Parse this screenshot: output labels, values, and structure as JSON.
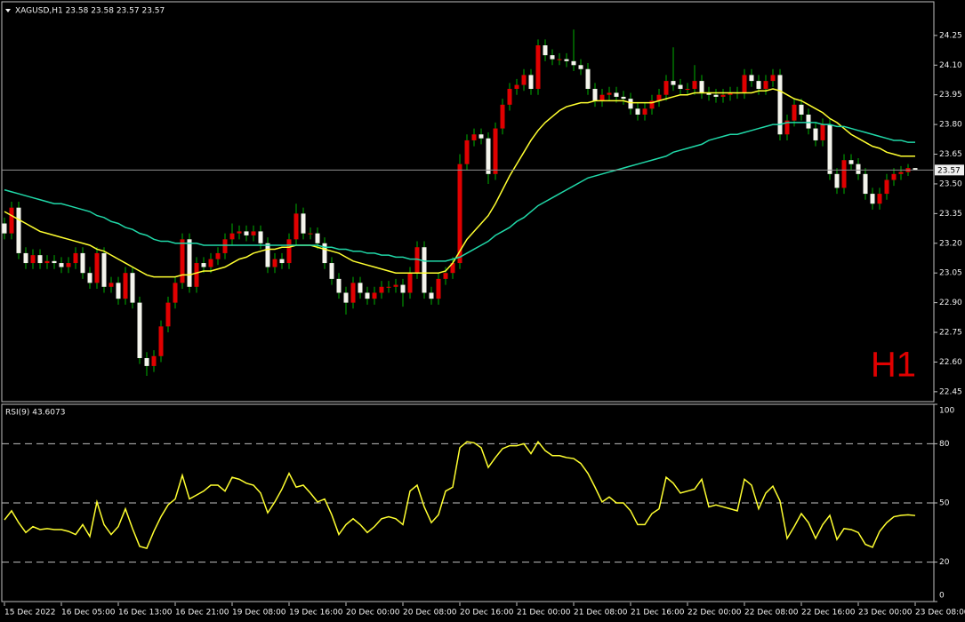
{
  "chart_data": [
    {
      "type": "candlestick",
      "title": "XAGUSD,H1 23.58 23.58 23.57 23.57",
      "period_label": "H1",
      "categories": [
        "15 Dec 2022",
        null,
        null,
        null,
        null,
        null,
        null,
        null,
        "16 Dec 05:00",
        null,
        null,
        null,
        null,
        null,
        null,
        null,
        "16 Dec 13:00",
        null,
        null,
        null,
        null,
        null,
        null,
        null,
        "16 Dec 21:00",
        null,
        null,
        null,
        null,
        null,
        null,
        null,
        "19 Dec 08:00",
        null,
        null,
        null,
        null,
        null,
        null,
        null,
        "19 Dec 16:00",
        null,
        null,
        null,
        null,
        null,
        null,
        null,
        "20 Dec 00:00",
        null,
        null,
        null,
        null,
        null,
        null,
        null,
        "20 Dec 08:00",
        null,
        null,
        null,
        null,
        null,
        null,
        null,
        "20 Dec 16:00",
        null,
        null,
        null,
        null,
        null,
        null,
        null,
        "21 Dec 00:00",
        null,
        null,
        null,
        null,
        null,
        null,
        null,
        "21 Dec 08:00",
        null,
        null,
        null,
        null,
        null,
        null,
        null,
        "21 Dec 16:00",
        null,
        null,
        null,
        null,
        null,
        null,
        null,
        "22 Dec 00:00",
        null,
        null,
        null,
        null,
        null,
        null,
        null,
        "22 Dec 08:00",
        null,
        null,
        null,
        null,
        null,
        null,
        null,
        "22 Dec 16:00",
        null,
        null,
        null,
        null,
        null,
        null,
        null,
        "23 Dec 00:00",
        null,
        null,
        null,
        null,
        null,
        null,
        null,
        "23 Dec 08:00"
      ],
      "open": [
        23.3,
        23.25,
        23.38,
        23.15,
        23.1,
        23.14,
        23.1,
        23.11,
        23.1,
        23.08,
        23.1,
        23.15,
        23.05,
        23.0,
        23.15,
        22.98,
        23.0,
        22.92,
        23.05,
        22.9,
        22.62,
        22.58,
        22.63,
        22.78,
        22.9,
        23.0,
        23.22,
        22.98,
        23.1,
        23.08,
        23.12,
        23.15,
        23.22,
        23.25,
        23.26,
        23.24,
        23.26,
        23.2,
        23.08,
        23.12,
        23.1,
        23.22,
        23.35,
        23.25,
        23.25,
        23.2,
        23.1,
        23.02,
        22.95,
        22.9,
        23.0,
        22.95,
        22.92,
        22.95,
        22.98,
        22.98,
        22.99,
        22.95,
        23.05,
        23.18,
        22.95,
        22.92,
        23.02,
        23.05,
        23.1,
        23.6,
        23.72,
        23.75,
        23.73,
        23.55,
        23.78,
        23.9,
        23.98,
        24.0,
        24.05,
        23.98,
        24.2,
        24.15,
        24.13,
        24.13,
        24.12,
        24.1,
        24.08,
        23.98,
        23.92,
        23.95,
        23.96,
        23.94,
        23.93,
        23.88,
        23.85,
        23.88,
        23.92,
        23.95,
        24.02,
        24.0,
        23.98,
        23.98,
        24.02,
        23.96,
        23.95,
        23.94,
        23.95,
        23.96,
        23.96,
        24.05,
        24.02,
        23.98,
        24.02,
        24.05,
        23.75,
        23.82,
        23.9,
        23.85,
        23.78,
        23.72,
        23.8,
        23.55,
        23.48,
        23.62,
        23.6,
        23.55,
        23.45,
        23.4,
        23.45,
        23.52,
        23.55,
        23.56,
        23.58
      ],
      "high": [
        23.33,
        23.41,
        23.41,
        23.18,
        23.17,
        23.17,
        23.14,
        23.14,
        23.13,
        23.13,
        23.18,
        23.18,
        23.08,
        23.18,
        23.18,
        23.03,
        23.03,
        23.08,
        23.08,
        22.93,
        22.65,
        22.66,
        22.81,
        22.93,
        23.03,
        23.25,
        23.25,
        23.13,
        23.13,
        23.15,
        23.18,
        23.25,
        23.3,
        23.29,
        23.29,
        23.29,
        23.29,
        23.23,
        23.15,
        23.15,
        23.25,
        23.4,
        23.38,
        23.28,
        23.28,
        23.23,
        23.13,
        23.05,
        22.98,
        23.03,
        23.03,
        22.98,
        22.98,
        23.01,
        23.01,
        23.02,
        23.02,
        23.08,
        23.21,
        23.21,
        22.98,
        23.05,
        23.08,
        23.13,
        23.65,
        23.75,
        23.78,
        23.78,
        23.76,
        23.81,
        23.93,
        24.01,
        24.03,
        24.08,
        24.08,
        24.23,
        24.23,
        24.18,
        24.16,
        24.16,
        24.28,
        24.13,
        24.11,
        24.01,
        23.98,
        23.99,
        23.99,
        23.97,
        23.96,
        23.91,
        23.91,
        23.95,
        23.98,
        24.05,
        24.19,
        24.03,
        24.01,
        24.1,
        24.05,
        23.99,
        23.98,
        23.98,
        23.99,
        23.99,
        24.08,
        24.08,
        24.05,
        24.05,
        24.08,
        24.08,
        23.85,
        23.93,
        23.93,
        23.88,
        23.81,
        23.83,
        23.83,
        23.58,
        23.65,
        23.65,
        23.63,
        23.58,
        23.48,
        23.48,
        23.55,
        23.58,
        23.59,
        23.6,
        23.58
      ],
      "low": [
        23.22,
        23.22,
        23.12,
        23.07,
        23.07,
        23.07,
        23.07,
        23.07,
        23.05,
        23.05,
        23.07,
        23.02,
        22.97,
        22.97,
        22.95,
        22.95,
        22.89,
        22.89,
        22.87,
        22.59,
        22.53,
        22.55,
        22.6,
        22.75,
        22.87,
        22.97,
        22.95,
        22.95,
        23.05,
        23.05,
        23.09,
        23.12,
        23.19,
        23.22,
        23.21,
        23.21,
        23.17,
        23.05,
        23.05,
        23.07,
        23.07,
        23.19,
        23.22,
        23.22,
        23.17,
        23.07,
        22.99,
        22.92,
        22.84,
        22.87,
        22.92,
        22.89,
        22.89,
        22.92,
        22.95,
        22.95,
        22.88,
        22.92,
        23.02,
        22.92,
        22.89,
        22.89,
        22.99,
        23.02,
        23.07,
        23.57,
        23.69,
        23.7,
        23.5,
        23.52,
        23.75,
        23.87,
        23.95,
        23.97,
        23.95,
        23.95,
        24.12,
        24.1,
        24.1,
        24.09,
        24.07,
        24.05,
        23.95,
        23.89,
        23.89,
        23.92,
        23.91,
        23.9,
        23.85,
        23.82,
        23.82,
        23.85,
        23.89,
        23.92,
        23.97,
        23.95,
        23.95,
        23.95,
        23.93,
        23.92,
        23.91,
        23.91,
        23.92,
        23.93,
        23.93,
        23.99,
        23.95,
        23.95,
        23.99,
        23.72,
        23.72,
        23.79,
        23.82,
        23.75,
        23.69,
        23.69,
        23.52,
        23.45,
        23.45,
        23.57,
        23.52,
        23.42,
        23.37,
        23.37,
        23.42,
        23.49,
        23.52,
        23.54,
        23.57
      ],
      "close": [
        23.25,
        23.38,
        23.15,
        23.1,
        23.14,
        23.1,
        23.11,
        23.1,
        23.08,
        23.1,
        23.15,
        23.05,
        23.0,
        23.15,
        22.98,
        23.0,
        22.92,
        23.05,
        22.9,
        22.62,
        22.58,
        22.63,
        22.78,
        22.9,
        23.0,
        23.22,
        22.98,
        23.1,
        23.08,
        23.12,
        23.15,
        23.22,
        23.25,
        23.26,
        23.24,
        23.26,
        23.2,
        23.08,
        23.12,
        23.1,
        23.22,
        23.35,
        23.25,
        23.25,
        23.2,
        23.1,
        23.02,
        22.95,
        22.9,
        23.0,
        22.95,
        22.92,
        22.95,
        22.98,
        22.98,
        22.99,
        22.95,
        23.05,
        23.18,
        22.95,
        22.92,
        23.02,
        23.05,
        23.1,
        23.6,
        23.72,
        23.75,
        23.73,
        23.55,
        23.78,
        23.9,
        23.98,
        24.0,
        24.05,
        23.98,
        24.2,
        24.15,
        24.13,
        24.13,
        24.12,
        24.1,
        24.08,
        23.98,
        23.92,
        23.95,
        23.96,
        23.94,
        23.93,
        23.88,
        23.85,
        23.88,
        23.92,
        23.95,
        24.02,
        24.0,
        23.98,
        23.98,
        24.02,
        23.96,
        23.95,
        23.94,
        23.95,
        23.96,
        23.96,
        24.05,
        24.02,
        23.98,
        24.02,
        24.05,
        23.75,
        23.82,
        23.9,
        23.85,
        23.78,
        23.72,
        23.8,
        23.55,
        23.48,
        23.62,
        23.6,
        23.55,
        23.45,
        23.4,
        23.45,
        23.52,
        23.55,
        23.56,
        23.58,
        23.57
      ],
      "bull_color": "#e00000",
      "bear_color": "#f4f4ec",
      "wick_color": "#00b000",
      "lines": [
        {
          "color": "#ffff30",
          "values": [
            23.36,
            23.34,
            23.32,
            23.3,
            23.28,
            23.26,
            23.25,
            23.24,
            23.23,
            23.22,
            23.21,
            23.2,
            23.19,
            23.17,
            23.16,
            23.14,
            23.12,
            23.1,
            23.08,
            23.06,
            23.04,
            23.03,
            23.03,
            23.03,
            23.03,
            23.04,
            23.04,
            23.05,
            23.06,
            23.06,
            23.07,
            23.08,
            23.1,
            23.12,
            23.13,
            23.15,
            23.16,
            23.17,
            23.17,
            23.18,
            23.18,
            23.19,
            23.19,
            23.19,
            23.18,
            23.17,
            23.16,
            23.15,
            23.13,
            23.11,
            23.1,
            23.09,
            23.08,
            23.07,
            23.06,
            23.05,
            23.05,
            23.05,
            23.05,
            23.05,
            23.05,
            23.05,
            23.06,
            23.1,
            23.16,
            23.22,
            23.26,
            23.3,
            23.34,
            23.4,
            23.47,
            23.54,
            23.6,
            23.66,
            23.72,
            23.77,
            23.81,
            23.84,
            23.87,
            23.89,
            23.9,
            23.91,
            23.91,
            23.92,
            23.92,
            23.92,
            23.92,
            23.92,
            23.91,
            23.91,
            23.91,
            23.91,
            23.92,
            23.93,
            23.94,
            23.95,
            23.95,
            23.96,
            23.96,
            23.96,
            23.96,
            23.96,
            23.96,
            23.96,
            23.96,
            23.96,
            23.97,
            23.97,
            23.98,
            23.97,
            23.95,
            23.93,
            23.92,
            23.9,
            23.88,
            23.86,
            23.83,
            23.81,
            23.78,
            23.75,
            23.73,
            23.71,
            23.69,
            23.68,
            23.66,
            23.65,
            23.64,
            23.64,
            23.64
          ]
        },
        {
          "color": "#20d8a8",
          "values": [
            23.47,
            23.46,
            23.45,
            23.44,
            23.43,
            23.42,
            23.41,
            23.4,
            23.4,
            23.39,
            23.38,
            23.37,
            23.36,
            23.34,
            23.33,
            23.31,
            23.3,
            23.28,
            23.27,
            23.25,
            23.24,
            23.22,
            23.21,
            23.21,
            23.2,
            23.2,
            23.2,
            23.2,
            23.19,
            23.19,
            23.19,
            23.19,
            23.19,
            23.19,
            23.19,
            23.19,
            23.19,
            23.19,
            23.19,
            23.19,
            23.19,
            23.19,
            23.19,
            23.19,
            23.19,
            23.18,
            23.18,
            23.17,
            23.17,
            23.16,
            23.16,
            23.15,
            23.15,
            23.14,
            23.14,
            23.13,
            23.13,
            23.12,
            23.12,
            23.11,
            23.11,
            23.11,
            23.11,
            23.12,
            23.13,
            23.15,
            23.17,
            23.19,
            23.21,
            23.24,
            23.26,
            23.28,
            23.31,
            23.33,
            23.36,
            23.39,
            23.41,
            23.43,
            23.45,
            23.47,
            23.49,
            23.51,
            23.53,
            23.54,
            23.55,
            23.56,
            23.57,
            23.58,
            23.59,
            23.6,
            23.61,
            23.62,
            23.63,
            23.64,
            23.66,
            23.67,
            23.68,
            23.69,
            23.7,
            23.72,
            23.73,
            23.74,
            23.75,
            23.75,
            23.76,
            23.77,
            23.78,
            23.79,
            23.8,
            23.8,
            23.81,
            23.81,
            23.81,
            23.81,
            23.81,
            23.8,
            23.8,
            23.79,
            23.79,
            23.78,
            23.77,
            23.76,
            23.75,
            23.74,
            23.73,
            23.72,
            23.72,
            23.71,
            23.71
          ]
        }
      ],
      "current_price": 23.57,
      "ylim": [
        22.4,
        24.42
      ],
      "yticks": [
        22.45,
        {
          "value": 22.6,
          "label": "22.60"
        },
        22.75,
        {
          "value": 22.9,
          "label": "22.90"
        },
        23.05,
        {
          "value": 23.2,
          "label": "23.20"
        },
        23.35,
        {
          "value": 23.5,
          "label": "23.50"
        },
        23.65,
        {
          "value": 23.8,
          "label": "23.80"
        },
        23.95,
        {
          "value": 24.1,
          "label": "24.10"
        },
        24.25
      ]
    },
    {
      "type": "line",
      "title": "RSI(9) 43.6073",
      "color": "#ffff30",
      "values": [
        41.4,
        46,
        40,
        35,
        38,
        36.5,
        37,
        36.5,
        36.5,
        35.6,
        34,
        39,
        33,
        50.5,
        39,
        34,
        38,
        47,
        37,
        28,
        27,
        35.6,
        43,
        49,
        52,
        64,
        52,
        54,
        56,
        59,
        59,
        56,
        63,
        62,
        60,
        59,
        55,
        45,
        50.5,
        57,
        65,
        58,
        59,
        55,
        50.5,
        52,
        44,
        34,
        39,
        42,
        39,
        35,
        38,
        42,
        43,
        42,
        39,
        56,
        59,
        48,
        40,
        44,
        56,
        58,
        78,
        81,
        80.5,
        78,
        68,
        73,
        77.5,
        79,
        79,
        80,
        75,
        81,
        76.5,
        74,
        74,
        73,
        72.5,
        70,
        65,
        58,
        50.5,
        53,
        50,
        50,
        46,
        39,
        39,
        44.6,
        47,
        63,
        60,
        55,
        56,
        57,
        62,
        48,
        49,
        48,
        47,
        46,
        62,
        59,
        47,
        55,
        58.5,
        51,
        32,
        38,
        44.6,
        40,
        32,
        39,
        43.7,
        31.5,
        37,
        36.5,
        35,
        29,
        27.5,
        35.6,
        40,
        43,
        43.7,
        44,
        43.6073
      ],
      "ylim": [
        0,
        100
      ],
      "yticks": [
        0,
        20,
        50,
        80,
        100
      ],
      "grid": true
    }
  ]
}
